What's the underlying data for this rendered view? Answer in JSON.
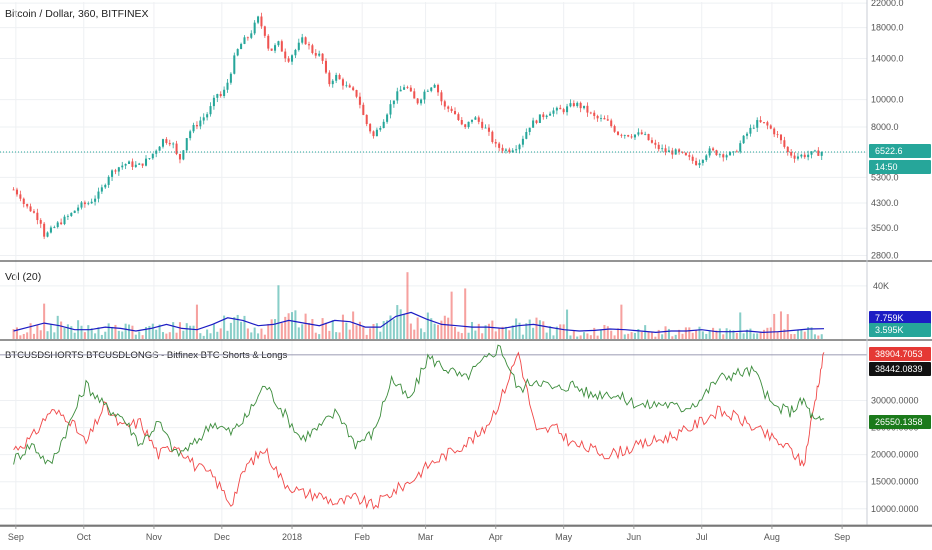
{
  "chart_data": [
    {
      "type": "candlestick",
      "title": "Bitcoin / Dollar, 360, BITFINEX",
      "y_ticks": [
        "2800.0",
        "3500.0",
        "4300.0",
        "5300.0",
        "6500.0",
        "8000.0",
        "10000.0",
        "14000.0",
        "18000.0",
        "22000.0"
      ],
      "y_scale": "log",
      "ylim": [
        2700,
        22200
      ],
      "last_price": "6522.6",
      "countdown": "14:50",
      "colors": {
        "up": "#26a69a",
        "down": "#ef5350",
        "last_line": "#26a69a",
        "badge": "#26a69a"
      },
      "x": [
        "2017-08-31",
        "2017-09-03",
        "2017-09-05",
        "2017-09-08",
        "2017-09-12",
        "2017-09-14",
        "2017-09-15",
        "2017-09-20",
        "2017-09-25",
        "2017-09-29",
        "2017-10-03",
        "2017-10-08",
        "2017-10-12",
        "2017-10-15",
        "2017-10-20",
        "2017-10-25",
        "2017-10-30",
        "2017-11-05",
        "2017-11-09",
        "2017-11-12",
        "2017-11-16",
        "2017-11-20",
        "2017-11-25",
        "2017-11-29",
        "2017-12-01",
        "2017-12-04",
        "2017-12-07",
        "2017-12-10",
        "2017-12-13",
        "2017-12-17",
        "2017-12-20",
        "2017-12-22",
        "2017-12-26",
        "2017-12-30",
        "2018-01-03",
        "2018-01-06",
        "2018-01-10",
        "2018-01-14",
        "2018-01-17",
        "2018-01-20",
        "2018-01-25",
        "2018-01-30",
        "2018-02-02",
        "2018-02-06",
        "2018-02-10",
        "2018-02-15",
        "2018-02-20",
        "2018-02-25",
        "2018-03-01",
        "2018-03-05",
        "2018-03-09",
        "2018-03-13",
        "2018-03-18",
        "2018-03-22",
        "2018-03-27",
        "2018-04-01",
        "2018-04-06",
        "2018-04-11",
        "2018-04-16",
        "2018-04-20",
        "2018-04-25",
        "2018-05-01",
        "2018-05-06",
        "2018-05-10",
        "2018-05-15",
        "2018-05-20",
        "2018-05-25",
        "2018-05-31",
        "2018-06-05",
        "2018-06-10",
        "2018-06-15",
        "2018-06-20",
        "2018-06-25",
        "2018-06-29",
        "2018-07-04",
        "2018-07-10",
        "2018-07-15",
        "2018-07-20",
        "2018-07-25",
        "2018-07-29",
        "2018-08-03",
        "2018-08-08",
        "2018-08-11",
        "2018-08-15",
        "2018-08-20",
        "2018-08-24"
      ],
      "close": [
        4800,
        4550,
        4200,
        4050,
        3700,
        3200,
        3350,
        3650,
        3900,
        4200,
        4300,
        4650,
        5400,
        5700,
        5950,
        5800,
        6200,
        7200,
        7100,
        6000,
        7600,
        8200,
        9000,
        10500,
        10200,
        11800,
        14500,
        16000,
        16800,
        19400,
        17200,
        14800,
        15800,
        13800,
        15200,
        16500,
        14800,
        14200,
        11300,
        12200,
        11100,
        10300,
        8500,
        7400,
        8400,
        10100,
        11300,
        9700,
        10800,
        11500,
        9400,
        9200,
        7800,
        8700,
        8000,
        6850,
        6600,
        6900,
        8100,
        8600,
        9100,
        9200,
        9700,
        9300,
        8600,
        8400,
        7600,
        7500,
        7550,
        6850,
        6550,
        6500,
        6200,
        5950,
        6600,
        6400,
        6400,
        7400,
        8300,
        8200,
        7550,
        6500,
        6300,
        6350,
        6450,
        6522.6
      ]
    },
    {
      "type": "bar",
      "title": "Vol (20)",
      "y_ticks": [
        "40K"
      ],
      "ylim": [
        0,
        58000
      ],
      "last_volume": "3.595K",
      "last_ma": "7.759K",
      "colors": {
        "up": "#26a69a",
        "down": "#ef5350",
        "ma": "#1c1cc4"
      },
      "ma_values": [
        6000,
        9000,
        12000,
        10000,
        7000,
        7000,
        9000,
        8000,
        6000,
        8000,
        11000,
        8000,
        7000,
        11000,
        16000,
        14000,
        10000,
        11000,
        14000,
        12000,
        10000,
        14000,
        13000,
        9000,
        9000,
        17000,
        20000,
        15000,
        11000,
        10000,
        9000,
        9000,
        8000,
        10000,
        11000,
        9000,
        7000,
        6000,
        6500,
        7500,
        7000,
        6000,
        5000,
        6000,
        6000,
        7000,
        5500,
        5500,
        6000,
        5000,
        5500,
        6500,
        7500,
        7759
      ]
    },
    {
      "type": "line",
      "title": "BTCUSDSHORTS BTCUSDLONGS - Bitfinex BTC Shorts & Longs",
      "y_ticks": [
        "10000.0000",
        "15000.0000",
        "20000.0000",
        "25000.0000",
        "30000.0000"
      ],
      "ylim": [
        7000,
        41000
      ],
      "labels": [
        "38904.7053",
        "38442.0839",
        "26550.1358"
      ],
      "series": [
        {
          "color": "#f04848",
          "x": [
            "2017-08-31",
            "2017-09-08",
            "2017-09-16",
            "2017-09-24",
            "2017-10-02",
            "2017-10-10",
            "2017-10-18",
            "2017-10-26",
            "2017-11-03",
            "2017-11-11",
            "2017-11-19",
            "2017-11-27",
            "2017-12-05",
            "2017-12-12",
            "2017-12-20",
            "2017-12-28",
            "2018-01-05",
            "2018-01-13",
            "2018-01-21",
            "2018-01-29",
            "2018-02-06",
            "2018-02-14",
            "2018-02-22",
            "2018-03-02",
            "2018-03-10",
            "2018-03-18",
            "2018-03-26",
            "2018-04-03",
            "2018-04-11",
            "2018-04-19",
            "2018-04-27",
            "2018-05-05",
            "2018-05-13",
            "2018-05-21",
            "2018-05-29",
            "2018-06-06",
            "2018-06-14",
            "2018-06-22",
            "2018-06-30",
            "2018-07-08",
            "2018-07-16",
            "2018-07-24",
            "2018-08-01",
            "2018-08-09",
            "2018-08-15",
            "2018-08-20",
            "2018-08-24"
          ],
          "y": [
            21000,
            23000,
            28000,
            27000,
            22000,
            29000,
            25000,
            26000,
            20000,
            22000,
            18000,
            16000,
            11000,
            18000,
            21000,
            15000,
            13000,
            12500,
            11000,
            12000,
            10500,
            13000,
            15000,
            18000,
            20000,
            22000,
            24000,
            30000,
            39000,
            24000,
            25000,
            22000,
            21000,
            20000,
            21000,
            22000,
            23000,
            24000,
            26000,
            28000,
            27000,
            25000,
            23000,
            21000,
            18000,
            30000,
            38904.7053
          ]
        },
        {
          "color": "#3c8c3c",
          "x": [
            "2017-08-31",
            "2017-09-08",
            "2017-09-16",
            "2017-09-24",
            "2017-10-02",
            "2017-10-10",
            "2017-10-18",
            "2017-10-26",
            "2017-11-03",
            "2017-11-11",
            "2017-11-19",
            "2017-11-27",
            "2017-12-05",
            "2017-12-12",
            "2017-12-20",
            "2017-12-28",
            "2018-01-05",
            "2018-01-13",
            "2018-01-21",
            "2018-01-29",
            "2018-02-06",
            "2018-02-14",
            "2018-02-22",
            "2018-03-02",
            "2018-03-10",
            "2018-03-18",
            "2018-03-26",
            "2018-04-03",
            "2018-04-11",
            "2018-04-19",
            "2018-04-27",
            "2018-05-05",
            "2018-05-13",
            "2018-05-21",
            "2018-05-29",
            "2018-06-06",
            "2018-06-14",
            "2018-06-22",
            "2018-06-30",
            "2018-07-08",
            "2018-07-16",
            "2018-07-24",
            "2018-08-01",
            "2018-08-09",
            "2018-08-15",
            "2018-08-20",
            "2018-08-24"
          ],
          "y": [
            19000,
            22000,
            18000,
            25000,
            33000,
            29000,
            27000,
            22000,
            26000,
            20000,
            22000,
            26000,
            24000,
            27000,
            33000,
            28000,
            23000,
            25000,
            28000,
            22000,
            24000,
            34000,
            30000,
            38000,
            36000,
            34000,
            37000,
            40000,
            32000,
            34000,
            32000,
            33000,
            31000,
            31500,
            30000,
            29000,
            29500,
            28500,
            30000,
            34000,
            35000,
            35500,
            29000,
            28000,
            30000,
            26000,
            26550.1358
          ]
        }
      ],
      "reference_value": 38442.0839
    }
  ],
  "x_axis": {
    "labels": [
      "Sep",
      "Oct",
      "Nov",
      "Dec",
      "2018",
      "Feb",
      "Mar",
      "Apr",
      "May",
      "Jun",
      "Jul",
      "Aug",
      "Sep"
    ],
    "dates": [
      "2017-09-01",
      "2017-10-01",
      "2017-11-01",
      "2017-12-01",
      "2018-01-01",
      "2018-02-01",
      "2018-03-01",
      "2018-04-01",
      "2018-05-01",
      "2018-06-01",
      "2018-07-01",
      "2018-08-01",
      "2018-09-01"
    ]
  }
}
